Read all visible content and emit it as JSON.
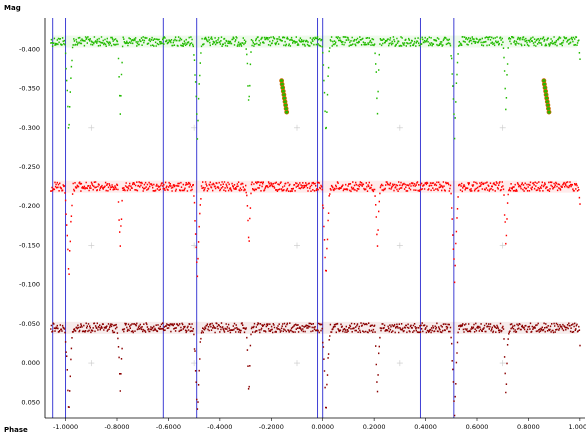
{
  "chart_data": {
    "type": "scatter",
    "title": "",
    "xlabel": "Phase",
    "ylabel": "Mag",
    "xlim": [
      -1.08,
      1.02
    ],
    "ylim": [
      0.07,
      -0.44
    ],
    "y_inverted": true,
    "x_ticks": [
      "-1.0000",
      "-0.8000",
      "-0.6000",
      "-0.4000",
      "-0.2000",
      "0.0000",
      "0.2000",
      "0.4000",
      "0.6000",
      "0.8000",
      "1.0000"
    ],
    "x_tick_values": [
      -1.0,
      -0.8,
      -0.6,
      -0.4,
      -0.2,
      0.0,
      0.2,
      0.4,
      0.6,
      0.8,
      1.0
    ],
    "y_ticks": [
      "-0.400",
      "-0.350",
      "-0.300",
      "-0.250",
      "-0.200",
      "-0.150",
      "-0.100",
      "-0.050",
      "0.000",
      "0.050"
    ],
    "y_tick_values": [
      -0.4,
      -0.35,
      -0.3,
      -0.25,
      -0.2,
      -0.15,
      -0.1,
      -0.05,
      0.0,
      0.05
    ],
    "grid": "sparse-crosses",
    "vertical_markers": [
      -1.05,
      -1.0,
      -0.62,
      -0.49,
      -0.02,
      0.0,
      0.38,
      0.51
    ],
    "series": [
      {
        "color": "#22bb00",
        "baseline": -0.41,
        "primary_eclipse_depth": 0.12,
        "secondary_eclipse_depth": 0.09,
        "highlight_segments": [
          [
            -0.16,
            -0.14,
            -0.36,
            -0.32
          ],
          [
            0.86,
            0.88,
            -0.36,
            -0.32
          ]
        ]
      },
      {
        "color": "#ff0000",
        "baseline": -0.225,
        "primary_eclipse_depth": 0.12,
        "secondary_eclipse_depth": 0.08
      },
      {
        "color": "#8b0000",
        "baseline": -0.045,
        "primary_eclipse_depth": 0.11,
        "secondary_eclipse_depth": 0.085
      }
    ]
  },
  "colors": {
    "marker_line": "#2a2ad0",
    "grid_cross": "#c8c8c8",
    "axis": "#000000",
    "highlight_outline": "#cc6600"
  }
}
